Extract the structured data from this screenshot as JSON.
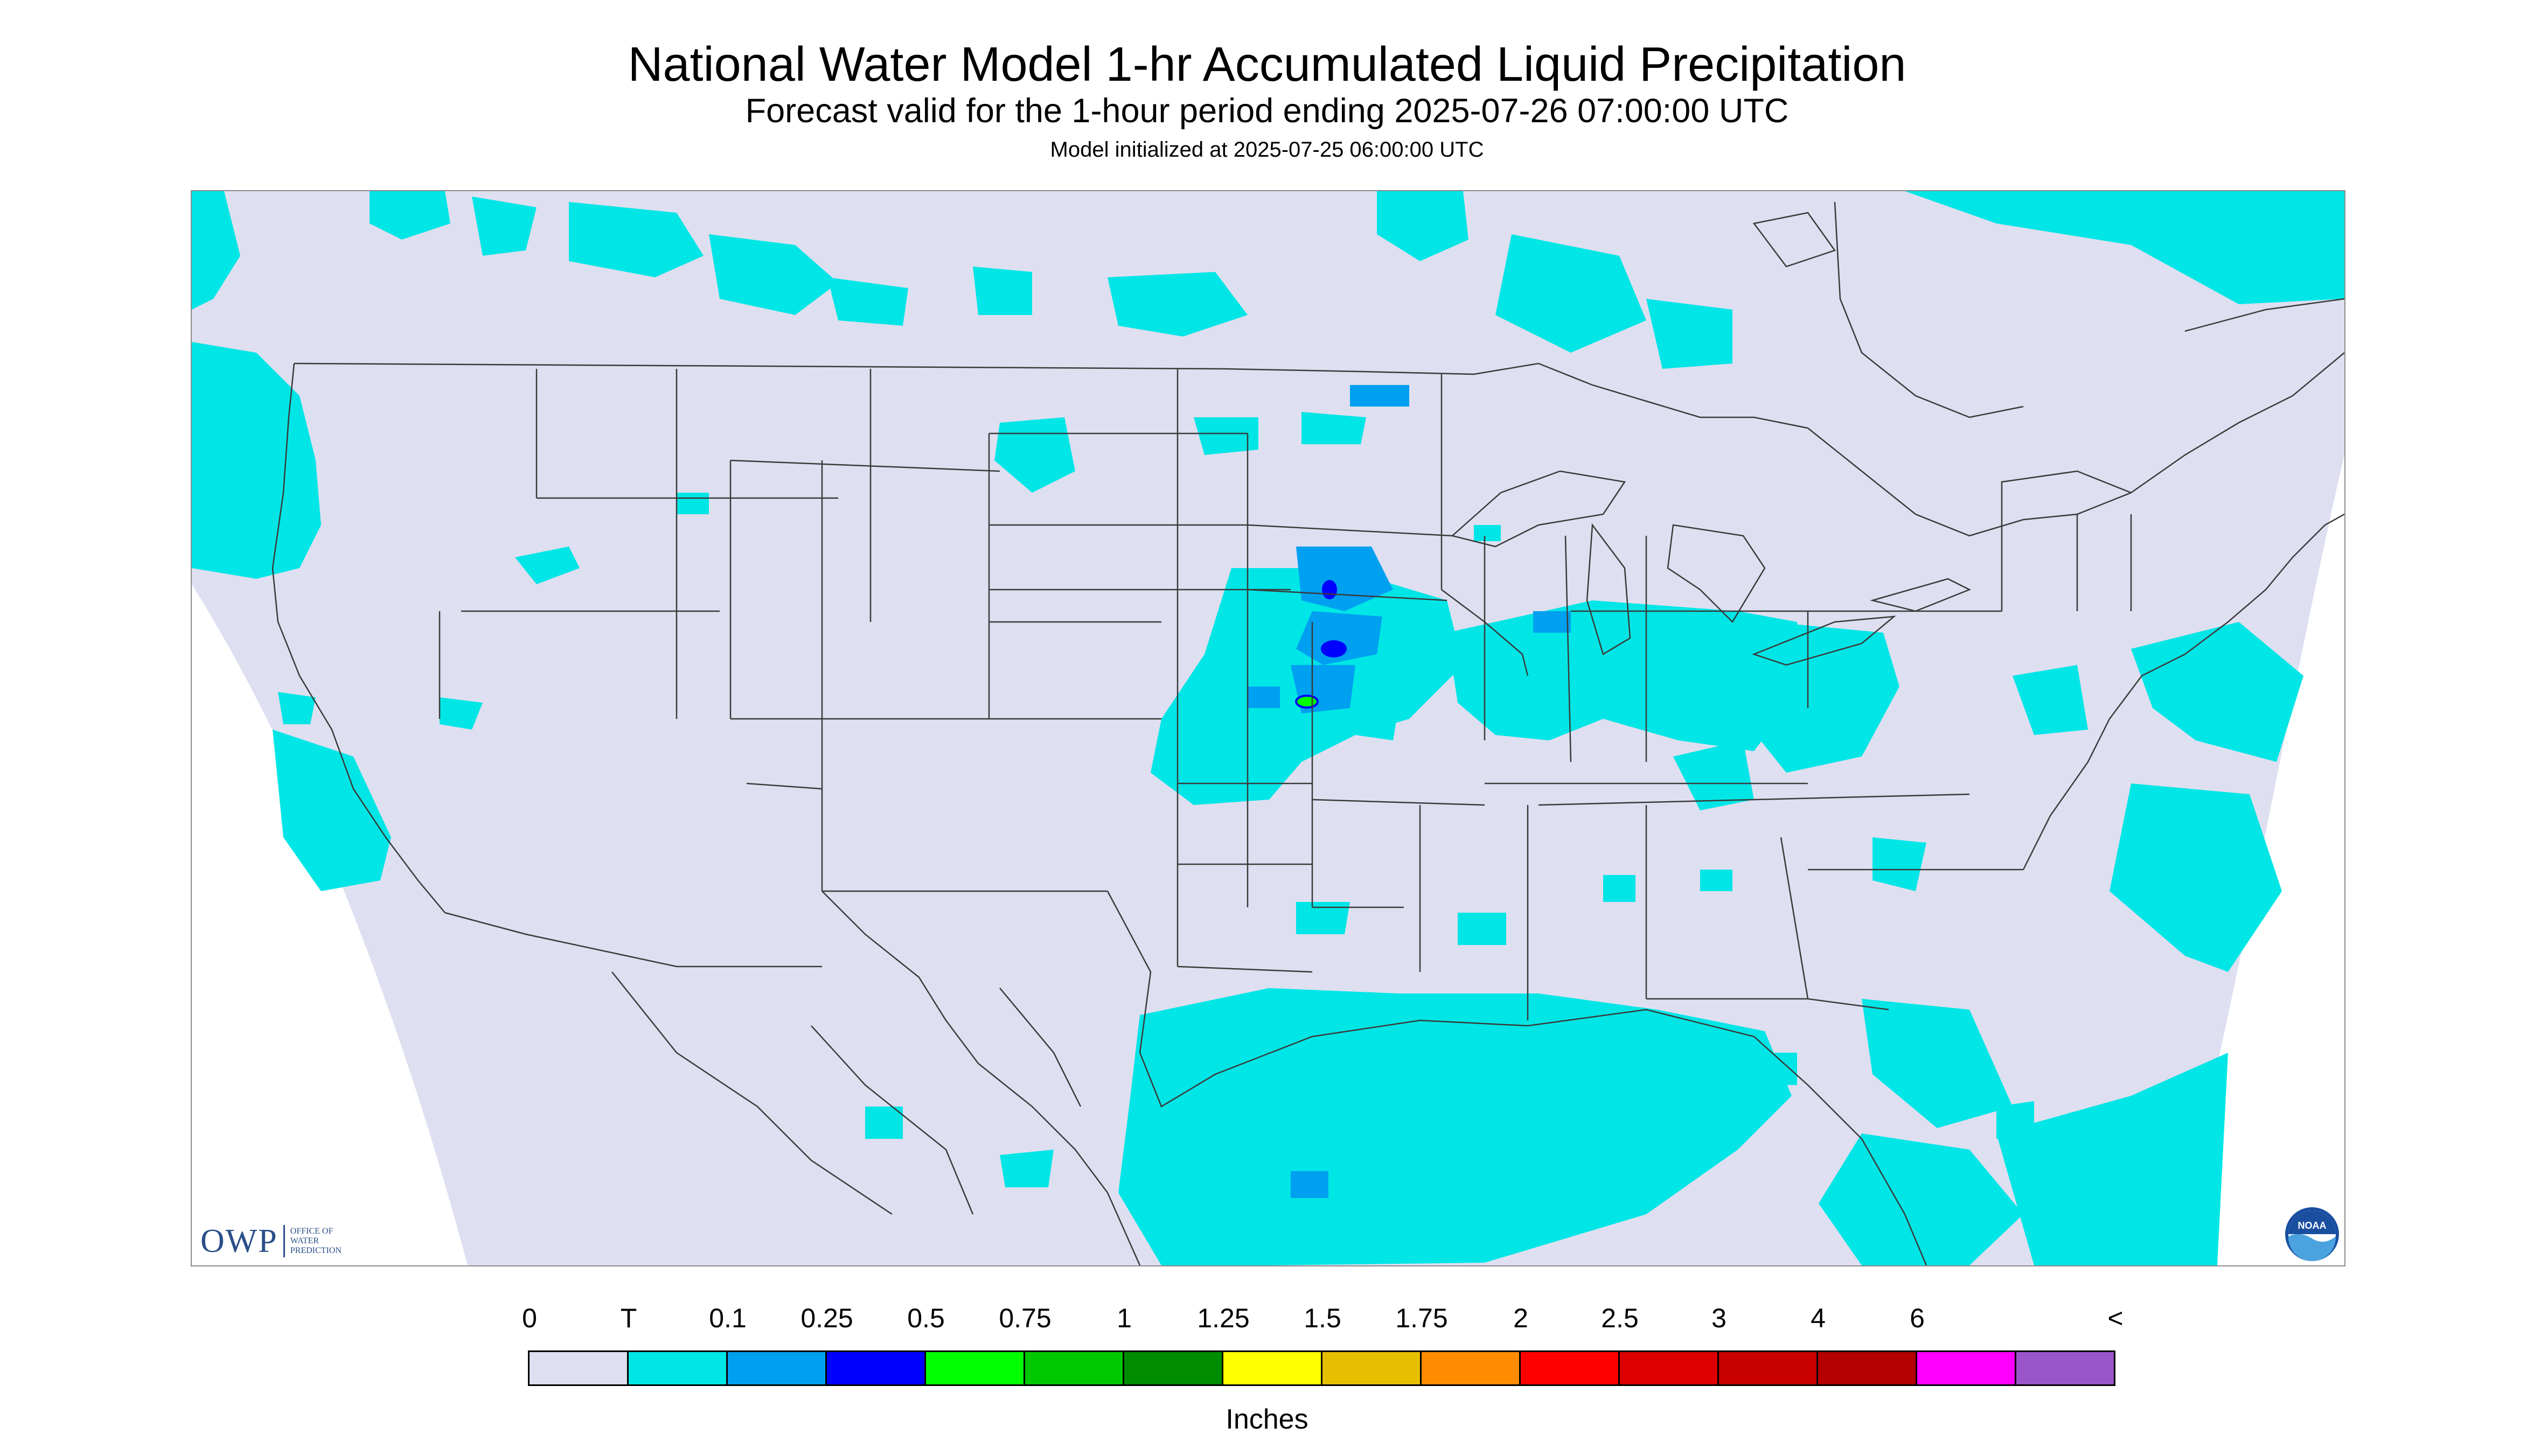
{
  "header": {
    "title": "National Water Model 1-hr Accumulated Liquid Precipitation",
    "subtitle": "Forecast valid for the 1-hour period ending 2025-07-26 07:00:00 UTC",
    "init": "Model initialized at 2025-07-25 06:00:00 UTC"
  },
  "map": {
    "background_color": "#dedff0",
    "outside_color": "#ffffff",
    "boundary_color": "#3a3a3a",
    "trace_color": "#00e6e6",
    "light_blue": "#00a0f0",
    "blue": "#0000ff",
    "green": "#00ff00"
  },
  "logos": {
    "owp_letters": "OWP",
    "owp_name_line1": "OFFICE OF",
    "owp_name_line2": "WATER",
    "owp_name_line3": "PREDICTION",
    "noaa_text": "NOAA",
    "noaa_icon": "noaa-logo-icon"
  },
  "legend": {
    "labels": [
      "0",
      "T",
      "0.1",
      "0.25",
      "0.5",
      "0.75",
      "1",
      "1.25",
      "1.5",
      "1.75",
      "2",
      "2.5",
      "3",
      "4",
      "6",
      "<"
    ],
    "colors": [
      "#dedff0",
      "#00e6e6",
      "#00a0f0",
      "#0000ff",
      "#00ff00",
      "#00c800",
      "#008c00",
      "#ffff00",
      "#e6c000",
      "#ff8c00",
      "#ff0000",
      "#dc0000",
      "#c80000",
      "#b40000",
      "#ff00ff",
      "#9955c9"
    ],
    "units": "Inches"
  }
}
